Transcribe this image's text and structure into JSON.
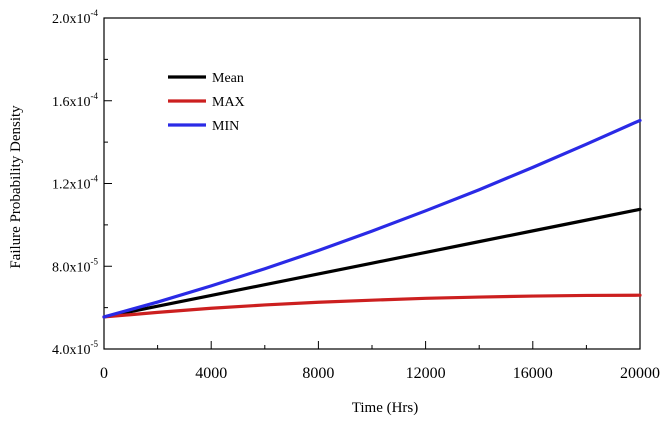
{
  "chart_data": {
    "type": "line",
    "title": "",
    "xlabel": "Time (Hrs)",
    "ylabel": "Failure Probability Density",
    "xlim": [
      0,
      20000
    ],
    "ylim": [
      4e-05,
      0.0002
    ],
    "grid": false,
    "legend_position": "top-left",
    "x_tick_values": [
      0,
      4000,
      8000,
      12000,
      16000,
      20000
    ],
    "x_tick_labels": [
      "0",
      "4000",
      "8000",
      "12000",
      "16000",
      "20000"
    ],
    "y_ticks": [
      {
        "value": 4e-05,
        "mantissa": "4.0x10",
        "exponent": "-5"
      },
      {
        "value": 8e-05,
        "mantissa": "8.0x10",
        "exponent": "-5"
      },
      {
        "value": 0.00012,
        "mantissa": "1.2x10",
        "exponent": "-4"
      },
      {
        "value": 0.00016,
        "mantissa": "1.6x10",
        "exponent": "-4"
      },
      {
        "value": 0.0002,
        "mantissa": "2.0x10",
        "exponent": "-4"
      }
    ],
    "x": [
      0,
      2000,
      4000,
      6000,
      8000,
      10000,
      12000,
      14000,
      16000,
      18000,
      20000
    ],
    "series": [
      {
        "name": "Mean",
        "color": "#000000",
        "values": [
          5.55e-05,
          6.07e-05,
          6.59e-05,
          7.11e-05,
          7.63e-05,
          8.15e-05,
          8.67e-05,
          9.19e-05,
          9.71e-05,
          0.0001023,
          0.0001075
        ]
      },
      {
        "name": "MAX",
        "color": "#cc1f1f",
        "values": [
          5.55e-05,
          5.77e-05,
          5.97e-05,
          6.13e-05,
          6.26e-05,
          6.36e-05,
          6.45e-05,
          6.51e-05,
          6.56e-05,
          6.59e-05,
          6.6e-05
        ]
      },
      {
        "name": "MIN",
        "color": "#2a2ae6",
        "values": [
          5.55e-05,
          6.27e-05,
          7.05e-05,
          7.88e-05,
          8.76e-05,
          9.7e-05,
          0.0001068,
          0.000117,
          0.0001278,
          0.000139,
          0.0001505
        ]
      }
    ]
  }
}
